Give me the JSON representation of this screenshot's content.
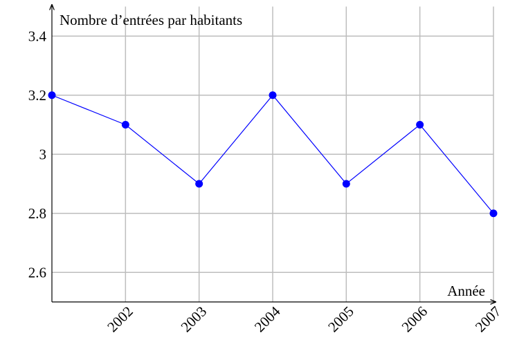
{
  "chart_data": {
    "type": "line",
    "y_label": "Nombre d’entrées par habitants",
    "x_label": "Année",
    "x": [
      2001,
      2002,
      2003,
      2004,
      2005,
      2006,
      2007
    ],
    "series": [
      {
        "color": "#0000ff",
        "values": [
          3.2,
          3.1,
          2.9,
          3.2,
          2.9,
          3.1,
          2.8
        ]
      }
    ],
    "xlim": [
      2001,
      2007
    ],
    "xticks": [
      2002,
      2003,
      2004,
      2005,
      2006,
      2007
    ],
    "ylim": [
      2.5,
      3.5
    ],
    "yticks": [
      2.6,
      2.8,
      3,
      3.2,
      3.4
    ],
    "grid": true
  }
}
